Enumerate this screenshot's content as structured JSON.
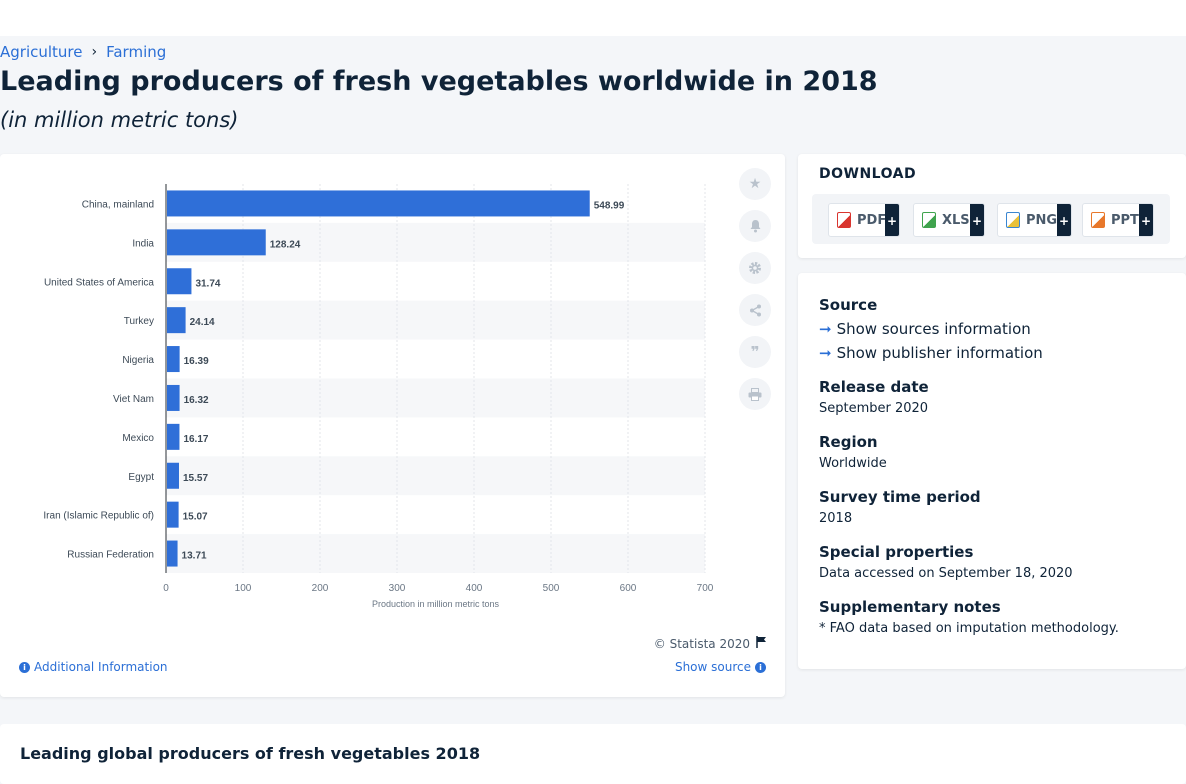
{
  "breadcrumb": [
    "Agriculture",
    "Farming"
  ],
  "title": "Leading producers of fresh vegetables worldwide in 2018",
  "subtitle": "(in million metric tons)",
  "chart_data": {
    "type": "bar",
    "orientation": "horizontal",
    "categories": [
      "China, mainland",
      "India",
      "United States of America",
      "Turkey",
      "Nigeria",
      "Viet Nam",
      "Mexico",
      "Egypt",
      "Iran (Islamic Republic of)",
      "Russian Federation"
    ],
    "values": [
      548.99,
      128.24,
      31.74,
      24.14,
      16.39,
      16.32,
      16.17,
      15.57,
      15.07,
      13.71
    ],
    "value_labels": [
      "548.99",
      "128.24",
      "31.74",
      "24.14",
      "16.39",
      "16.32",
      "16.17",
      "15.57",
      "15.07",
      "13.71"
    ],
    "xlabel": "Production in million metric tons",
    "xticks": [
      "0",
      "100",
      "200",
      "300",
      "400",
      "500",
      "600",
      "700"
    ],
    "xlim": [
      0,
      700
    ],
    "bar_color": "#2f6fd8",
    "grid": true
  },
  "chart_footer": {
    "copyright": "© Statista 2020",
    "additional_info": "Additional Information",
    "show_source": "Show source"
  },
  "tools": [
    "star-icon",
    "bell-icon",
    "gear-icon",
    "share-icon",
    "quote-icon",
    "print-icon"
  ],
  "download": {
    "title": "DOWNLOAD",
    "formats": [
      {
        "label": "PDF",
        "color": "#d9352f"
      },
      {
        "label": "XLS",
        "color": "#3fa34d"
      },
      {
        "label": "PNG",
        "color": "#3a86d1"
      },
      {
        "label": "PPT",
        "color": "#e8782b"
      }
    ],
    "plus": "+"
  },
  "details": {
    "source_heading": "Source",
    "show_sources": "Show sources information",
    "show_publisher": "Show publisher information",
    "release_heading": "Release date",
    "release_value": "September 2020",
    "region_heading": "Region",
    "region_value": "Worldwide",
    "survey_heading": "Survey time period",
    "survey_value": "2018",
    "special_heading": "Special properties",
    "special_value": "Data accessed on September 18, 2020",
    "supp_heading": "Supplementary notes",
    "supp_value": "* FAO data based on imputation methodology."
  },
  "bottom_title": "Leading global producers of fresh vegetables 2018"
}
